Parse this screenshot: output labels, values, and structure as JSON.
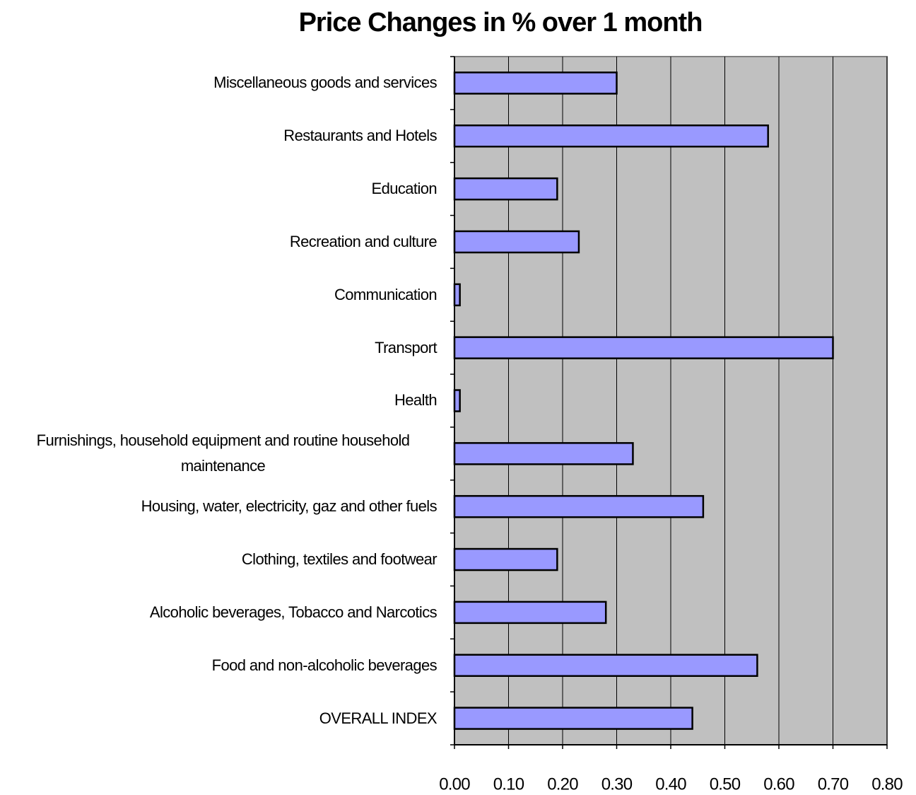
{
  "chart_data": {
    "type": "bar",
    "orientation": "horizontal",
    "title": "Price Changes in % over 1 month",
    "categories": [
      "Miscellaneous goods and services",
      "Restaurants and Hotels",
      "Education",
      "Recreation and culture",
      "Communication",
      "Transport",
      "Health",
      "Furnishings, household equipment and routine household maintenance",
      "Housing, water, electricity, gaz and other fuels",
      "Clothing, textiles and footwear",
      "Alcoholic beverages, Tobacco and Narcotics",
      "Food and non-alcoholic beverages",
      "OVERALL INDEX"
    ],
    "values": [
      0.3,
      0.58,
      0.19,
      0.23,
      0.01,
      0.7,
      0.01,
      0.33,
      0.46,
      0.19,
      0.28,
      0.56,
      0.44
    ],
    "color": "#9999ff",
    "xlim": [
      0,
      0.8
    ],
    "xticks": [
      {
        "value": 0,
        "label": "0.00"
      },
      {
        "value": 0.1,
        "label": "0.10"
      },
      {
        "value": 0.2,
        "label": "0.20"
      },
      {
        "value": 0.3,
        "label": "0.30"
      },
      {
        "value": 0.4,
        "label": "0.40"
      },
      {
        "value": 0.5,
        "label": "0.50"
      },
      {
        "value": 0.6,
        "label": "0.60"
      },
      {
        "value": 0.7,
        "label": "0.70"
      },
      {
        "value": 0.8,
        "label": "0.80"
      }
    ],
    "grid": true
  }
}
